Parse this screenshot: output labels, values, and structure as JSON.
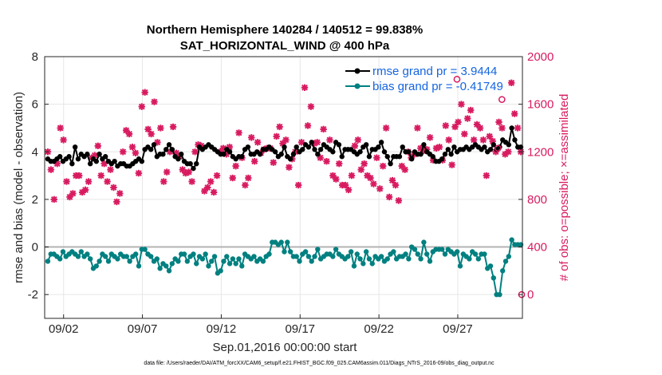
{
  "chart_data": {
    "type": "line",
    "title": "Northern Hemisphere 140284 / 140512 = 99.838%",
    "subtitle": "SAT_HORIZONTAL_WIND @ 400 hPa",
    "xlabel": "Sep.01,2016 00:00:00 start",
    "ylabel": "rmse and bias (model - observation)",
    "ylabel_right": "# of obs: o=possible; ×=assimilated",
    "footnote": "data file: /Users/raeder/DAI/ATM_forcXX/CAM6_setup/f.e21.FHIST_BGC.f09_025.CAM6assim.011/Diags_NTrS_2016-09/obs_diag_output.nc",
    "ylim": [
      -3,
      8
    ],
    "y_ticks": [
      "-2",
      "0",
      "2",
      "4",
      "6",
      "8"
    ],
    "y_tick_values": [
      -2,
      0,
      2,
      4,
      6,
      8
    ],
    "ylim_right": [
      -200,
      2000
    ],
    "y_right_ticks": [
      "0",
      "400",
      "800",
      "1200",
      "1600",
      "2000"
    ],
    "y_right_tick_values": [
      0,
      400,
      800,
      1200,
      1600,
      2000
    ],
    "xlim": [
      0.8,
      31.1
    ],
    "x_ticks": [
      "09/02",
      "09/07",
      "09/12",
      "09/17",
      "09/22",
      "09/27"
    ],
    "x_tick_values": [
      2,
      7,
      12,
      17,
      22,
      27
    ],
    "grid": true,
    "zero_line": 0,
    "legend_location": "top-right",
    "colors": {
      "rmse": "#000000",
      "bias": "#008080",
      "obs": "#d81b60",
      "legend_text": "#1565e0"
    },
    "series": [
      {
        "name": "rmse grand pr = 3.9444",
        "axis": "left",
        "color": "#000000",
        "marker": "circle",
        "values": [
          3.7,
          3.6,
          3.6,
          3.7,
          3.8,
          3.6,
          3.7,
          3.8,
          3.5,
          4.2,
          3.7,
          3.9,
          3.8,
          3.9,
          3.5,
          3.7,
          3.6,
          3.9,
          3.7,
          3.8,
          3.6,
          3.5,
          3.6,
          3.4,
          3.5,
          3.5,
          3.4,
          3.4,
          3.5,
          3.6,
          3.7,
          3.6,
          4.1,
          4.2,
          4.1,
          4.3,
          3.8,
          3.9,
          3.9,
          4.1,
          4.3,
          4.1,
          3.8,
          3.7,
          3.9,
          3.6,
          3.5,
          3.5,
          3.3,
          3.5,
          4.2,
          4.1,
          4.2,
          4.3,
          4.2,
          4.1,
          4.0,
          3.9,
          3.9,
          4.1,
          4.0,
          3.8,
          3.7,
          3.8,
          3.8,
          4.1,
          4.2,
          3.9,
          3.9,
          4.0,
          3.9,
          4.1,
          4.1,
          4.2,
          4.1,
          4.0,
          3.8,
          3.9,
          4.2,
          3.8,
          3.7,
          3.9,
          4.2,
          4.0,
          4.1,
          4.3,
          4.2,
          4.4,
          4.1,
          3.9,
          4.1,
          4.3,
          4.2,
          4.1,
          4.0,
          4.4,
          4.3,
          3.8,
          4.1,
          4.1,
          4.1,
          4.0,
          3.9,
          4.0,
          4.2,
          4.3,
          3.8,
          4.1,
          4.1,
          4.2,
          4.4,
          4.0,
          3.8,
          3.5,
          3.8,
          3.8,
          3.8,
          4.2,
          4.0,
          4.0,
          3.7,
          4.0,
          3.9,
          3.9,
          4.3,
          4.0,
          3.9,
          3.8,
          3.6,
          3.6,
          3.7,
          3.9,
          4.1,
          3.9,
          4.2,
          4.0,
          4.1,
          4.1,
          4.2,
          4.1,
          4.2,
          4.3,
          4.2,
          4.1,
          4.2,
          4.0,
          4.1,
          4.3,
          4.1,
          4.2,
          4.5,
          4.4,
          4.3,
          5.0,
          4.5,
          4.2,
          4.2
        ]
      },
      {
        "name": "bias grand pr = -0.41749",
        "axis": "left",
        "color": "#008080",
        "marker": "circle",
        "values": [
          -0.6,
          -0.3,
          -0.3,
          -0.4,
          -0.5,
          -0.2,
          -0.4,
          -0.3,
          -0.2,
          -0.3,
          -0.4,
          -0.2,
          -0.4,
          -0.3,
          -0.5,
          -0.9,
          -0.8,
          -0.6,
          -0.3,
          -0.4,
          -0.6,
          -0.3,
          -0.4,
          -0.5,
          -0.3,
          -0.4,
          -0.4,
          -0.6,
          -0.4,
          -0.3,
          -0.8,
          -0.1,
          -0.1,
          -0.3,
          -0.4,
          -0.6,
          -0.5,
          -0.9,
          -0.7,
          -0.8,
          -1.0,
          -0.7,
          -0.5,
          -0.6,
          -0.3,
          -0.3,
          -0.6,
          -0.4,
          -0.3,
          -0.7,
          -0.4,
          -0.5,
          -0.3,
          -0.8,
          -0.6,
          -0.4,
          -1.1,
          -1.0,
          -0.6,
          -0.4,
          -0.7,
          -0.5,
          -0.7,
          -0.5,
          -0.8,
          -0.3,
          -0.4,
          -0.5,
          -0.4,
          -0.6,
          -0.5,
          -0.6,
          -0.4,
          -0.3,
          0.2,
          0.2,
          0.1,
          0.2,
          -0.2,
          0.2,
          -0.2,
          -0.4,
          -0.4,
          -0.6,
          -0.3,
          -0.2,
          -0.4,
          -0.6,
          -0.4,
          -0.1,
          -0.5,
          -0.4,
          -0.3,
          -0.3,
          -0.4,
          -0.1,
          -0.3,
          -0.4,
          -0.5,
          -0.4,
          -0.2,
          -0.8,
          -0.3,
          -0.5,
          -0.7,
          -0.2,
          -0.5,
          -0.7,
          -0.4,
          -0.5,
          -0.4,
          -0.6,
          -0.5,
          -0.3,
          -0.2,
          -0.5,
          -0.4,
          -0.4,
          -0.3,
          -0.5,
          0.0,
          -0.1,
          -0.3,
          -0.5,
          0.2,
          -0.3,
          -0.6,
          -0.2,
          -0.1,
          -0.1,
          -0.1,
          -0.3,
          -0.1,
          -0.2,
          -0.3,
          -0.2,
          -0.8,
          -0.3,
          -0.4,
          -0.5,
          -0.2,
          -0.3,
          -0.5,
          -0.3,
          -0.3,
          -0.9,
          -0.8,
          -1.3,
          -2.0,
          -2.0,
          -1.0,
          -0.6,
          -0.4,
          0.3,
          0.1,
          0.1,
          0.1
        ]
      },
      {
        "name": "assimilated",
        "axis": "right",
        "color": "#d81b60",
        "marker": "x",
        "values": [
          1200,
          1050,
          800,
          1100,
          1400,
          1300,
          950,
          820,
          850,
          1000,
          1000,
          860,
          880,
          950,
          1150,
          1170,
          1250,
          1000,
          1100,
          950,
          1050,
          900,
          780,
          850,
          1200,
          1380,
          1350,
          1240,
          1190,
          1020,
          1580,
          1700,
          1390,
          1350,
          1620,
          1280,
          1400,
          950,
          1030,
          1200,
          1410,
          1190,
          1160,
          1050,
          1020,
          1030,
          950,
          1200,
          1260,
          1250,
          870,
          900,
          950,
          860,
          1000,
          1200,
          1230,
          1180,
          1240,
          980,
          1080,
          1360,
          1150,
          920,
          980,
          1320,
          1120,
          1280,
          1190,
          1220,
          1230,
          1230,
          1110,
          1330,
          1410,
          1270,
          1300,
          1070,
          1140,
          1200,
          920,
          1280,
          1740,
          1420,
          1580,
          1270,
          1280,
          1150,
          1390,
          1120,
          1300,
          1000,
          970,
          1100,
          920,
          920,
          880,
          1000,
          1250,
          1300,
          1050,
          1100,
          1000,
          980,
          930,
          1150,
          890,
          1080,
          1400,
          820,
          960,
          920,
          790,
          1080,
          1050,
          1200,
          1150,
          1180,
          1400,
          1230,
          1210,
          1220,
          1320,
          1130,
          1230,
          1240,
          1130,
          1420,
          1300,
          1090,
          1410,
          1450,
          1600,
          1350,
          1480,
          1550,
          1300,
          1430,
          1400,
          1300,
          1000,
          1330,
          1290,
          1200,
          1450,
          1400,
          1180,
          1200,
          1780,
          1520,
          1400,
          1200
        ]
      },
      {
        "name": "possible",
        "axis": "right",
        "color": "#d81b60",
        "marker": "o",
        "points": [
          {
            "x": 26.95,
            "y": 1810
          },
          {
            "x": 29.8,
            "y": 1640
          },
          {
            "x": 29.55,
            "y": 1230
          },
          {
            "x": 31.05,
            "y": 0
          }
        ]
      }
    ]
  }
}
